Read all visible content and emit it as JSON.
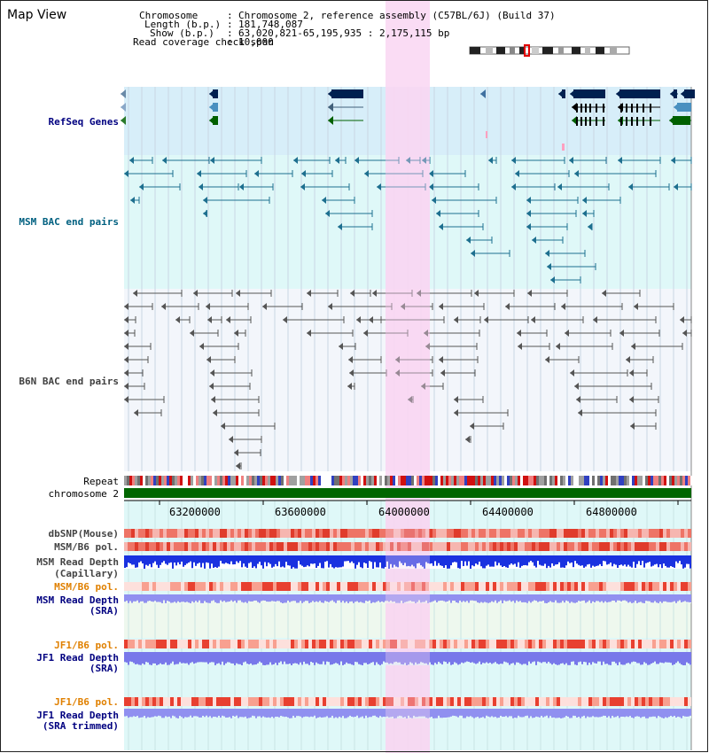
{
  "title": "Map View",
  "header": {
    "chromosome_key": "Chromosome",
    "chromosome_value": "Chromosome 2, reference assembly (C57BL/6J) (Build 37)",
    "length_key": "Length (b.p.)",
    "length_value": "181,748,087",
    "show_key": "Show (b.p.)",
    "show_value": "63,020,821-65,195,935 : 2,175,115 bp",
    "coverage_key": "Read coverage check span",
    "coverage_value": "10,000"
  },
  "tracks": {
    "refseq": "RefSeq Genes",
    "msm_bac": "MSM BAC end pairs",
    "b6n_bac": "B6N BAC end pairs",
    "repeat": "Repeat",
    "chromosome": "chromosome 2",
    "dbsnp": "dbSNP(Mouse)",
    "msm_b6_pol_1": "MSM/B6 pol.",
    "msm_read_depth_cap_1": "MSM Read Depth",
    "msm_read_depth_cap_2": "(Capillary)",
    "msm_b6_pol_2": "MSM/B6 pol.",
    "msm_read_depth_sra_1": "MSM Read Depth",
    "msm_read_depth_sra_2": "(SRA)",
    "jf1_b6_pol_1": "JF1/B6 pol.",
    "jf1_read_depth_sra_1": "JF1 Read Depth",
    "jf1_read_depth_sra_2": "(SRA)",
    "jf1_b6_pol_2": "JF1/B6 pol.",
    "jf1_read_depth_trim_1": "JF1 Read Depth",
    "jf1_read_depth_trim_2": "(SRA trimmed)"
  },
  "axis": {
    "ticks": [
      "63200000",
      "63600000",
      "64000000",
      "64400000",
      "64800000"
    ]
  },
  "colors": {
    "refseq_label": "#000080",
    "msm_label": "#006080",
    "b6n_label": "#404040",
    "orange_label": "#e08000",
    "blue_label": "#000080",
    "highlight": "#f9d6f2",
    "refseq_bg": "#d7eef9",
    "msm_bg": "#dff8f8"
  }
}
